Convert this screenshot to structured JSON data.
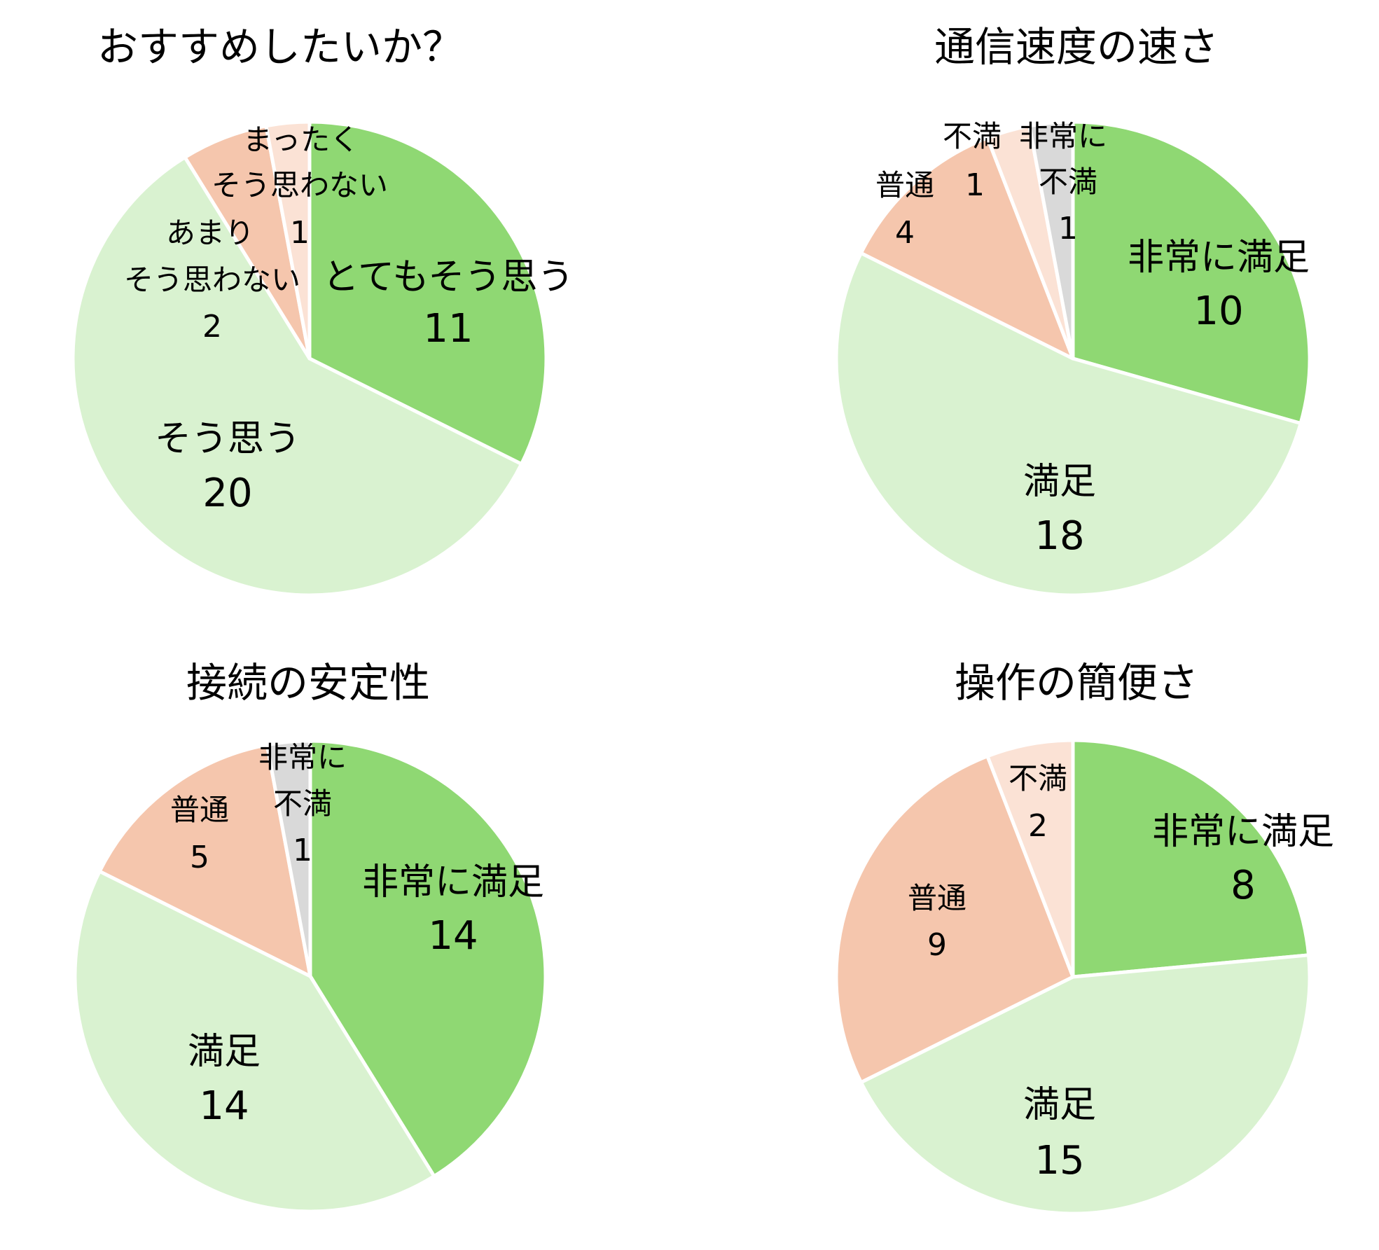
{
  "colors": {
    "very_positive": "#8FD873",
    "positive": "#D9F2D0",
    "neutral": "#F5C6AD",
    "negative": "#FBE2D5",
    "very_negative": "#D9D9D9",
    "separator": "#FFFFFF"
  },
  "chart_data": [
    {
      "type": "pie",
      "title": "おすすめしたいか？",
      "categories": [
        "とてもそう思う",
        "そう思う",
        "あまりそう思わない",
        "まったくそう思わない"
      ],
      "values": [
        11,
        20,
        2,
        1
      ],
      "colors": [
        "#8FD873",
        "#D9F2D0",
        "#F5C6AD",
        "#FBE2D5"
      ],
      "start_angle": "12 o'clock",
      "direction": "clockwise",
      "legend": "none (data labels on slices)"
    },
    {
      "type": "pie",
      "title": "通信速度の速さ",
      "categories": [
        "非常に満足",
        "満足",
        "普通",
        "不満",
        "非常に不満"
      ],
      "values": [
        10,
        18,
        4,
        1,
        1
      ],
      "colors": [
        "#8FD873",
        "#D9F2D0",
        "#F5C6AD",
        "#FBE2D5",
        "#D9D9D9"
      ],
      "start_angle": "12 o'clock",
      "direction": "clockwise",
      "legend": "none (data labels on slices)"
    },
    {
      "type": "pie",
      "title": "接続の安定性",
      "categories": [
        "非常に満足",
        "満足",
        "普通",
        "非常に不満"
      ],
      "values": [
        14,
        14,
        5,
        1
      ],
      "colors": [
        "#8FD873",
        "#D9F2D0",
        "#F5C6AD",
        "#D9D9D9"
      ],
      "start_angle": "12 o'clock",
      "direction": "clockwise",
      "legend": "none (data labels on slices)"
    },
    {
      "type": "pie",
      "title": "操作の簡便さ",
      "categories": [
        "非常に満足",
        "満足",
        "普通",
        "不満"
      ],
      "values": [
        8,
        15,
        9,
        2
      ],
      "colors": [
        "#8FD873",
        "#D9F2D0",
        "#F5C6AD",
        "#FBE2D5"
      ],
      "start_angle": "12 o'clock",
      "direction": "clockwise",
      "legend": "none (data labels on slices)"
    }
  ],
  "charts": {
    "recommend": {
      "title": "おすすめしたいか？",
      "labels": {
        "very_yes_name": "とてもそう思う",
        "very_yes_value": "11",
        "yes_name": "そう思う",
        "yes_value": "20",
        "not_really_name1": "あまり",
        "not_really_name2": "そう思わない",
        "not_really_value": "2",
        "not_at_all_name1": "まったく",
        "not_at_all_name2": "そう思わない",
        "not_at_all_value": "1"
      }
    },
    "speed": {
      "title": "通信速度の速さ",
      "labels": {
        "very_sat_name": "非常に満足",
        "very_sat_value": "10",
        "sat_name": "満足",
        "sat_value": "18",
        "normal_name": "普通",
        "normal_value": "4",
        "unsat_name": "不満",
        "unsat_value": "1",
        "very_unsat_name1": "非常に",
        "very_unsat_name2": "不満",
        "very_unsat_value": "1"
      }
    },
    "stability": {
      "title": "接続の安定性",
      "labels": {
        "very_sat_name": "非常に満足",
        "very_sat_value": "14",
        "sat_name": "満足",
        "sat_value": "14",
        "normal_name": "普通",
        "normal_value": "5",
        "very_unsat_name1": "非常に",
        "very_unsat_name2": "不満",
        "very_unsat_value": "1"
      }
    },
    "ease": {
      "title": "操作の簡便さ",
      "labels": {
        "very_sat_name": "非常に満足",
        "very_sat_value": "8",
        "sat_name": "満足",
        "sat_value": "15",
        "normal_name": "普通",
        "normal_value": "9",
        "unsat_name": "不満",
        "unsat_value": "2"
      }
    }
  }
}
